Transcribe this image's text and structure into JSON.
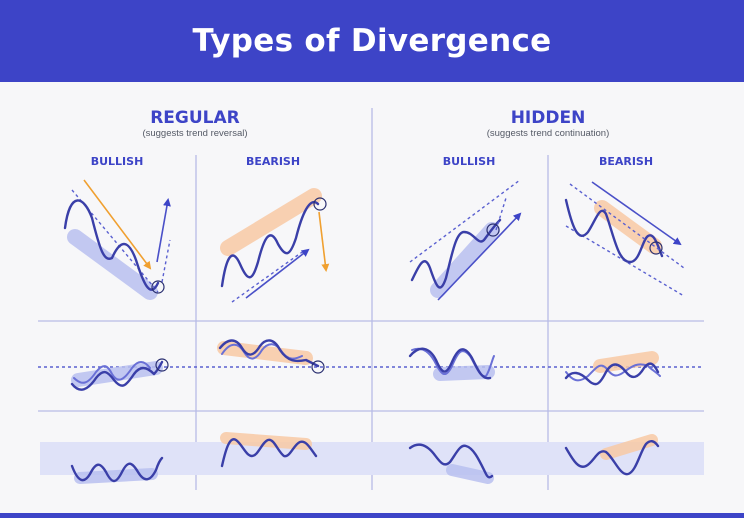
{
  "header": {
    "title": "Types of Divergence"
  },
  "regular": {
    "title": "REGULAR",
    "subtitle": "(suggests trend reversal)",
    "bullish": "BULLISH",
    "bearish": "BEARISH"
  },
  "hidden": {
    "title": "HIDDEN",
    "subtitle": "(suggests trend continuation)",
    "bullish": "BULLISH",
    "bearish": "BEARISH"
  },
  "colors": {
    "primary": "#3d44c7",
    "line": "#3a3fa8",
    "highlight_blue": "#b9bff0",
    "highlight_orange": "#f8c9a4",
    "arrow_orange": "#f0a030"
  }
}
